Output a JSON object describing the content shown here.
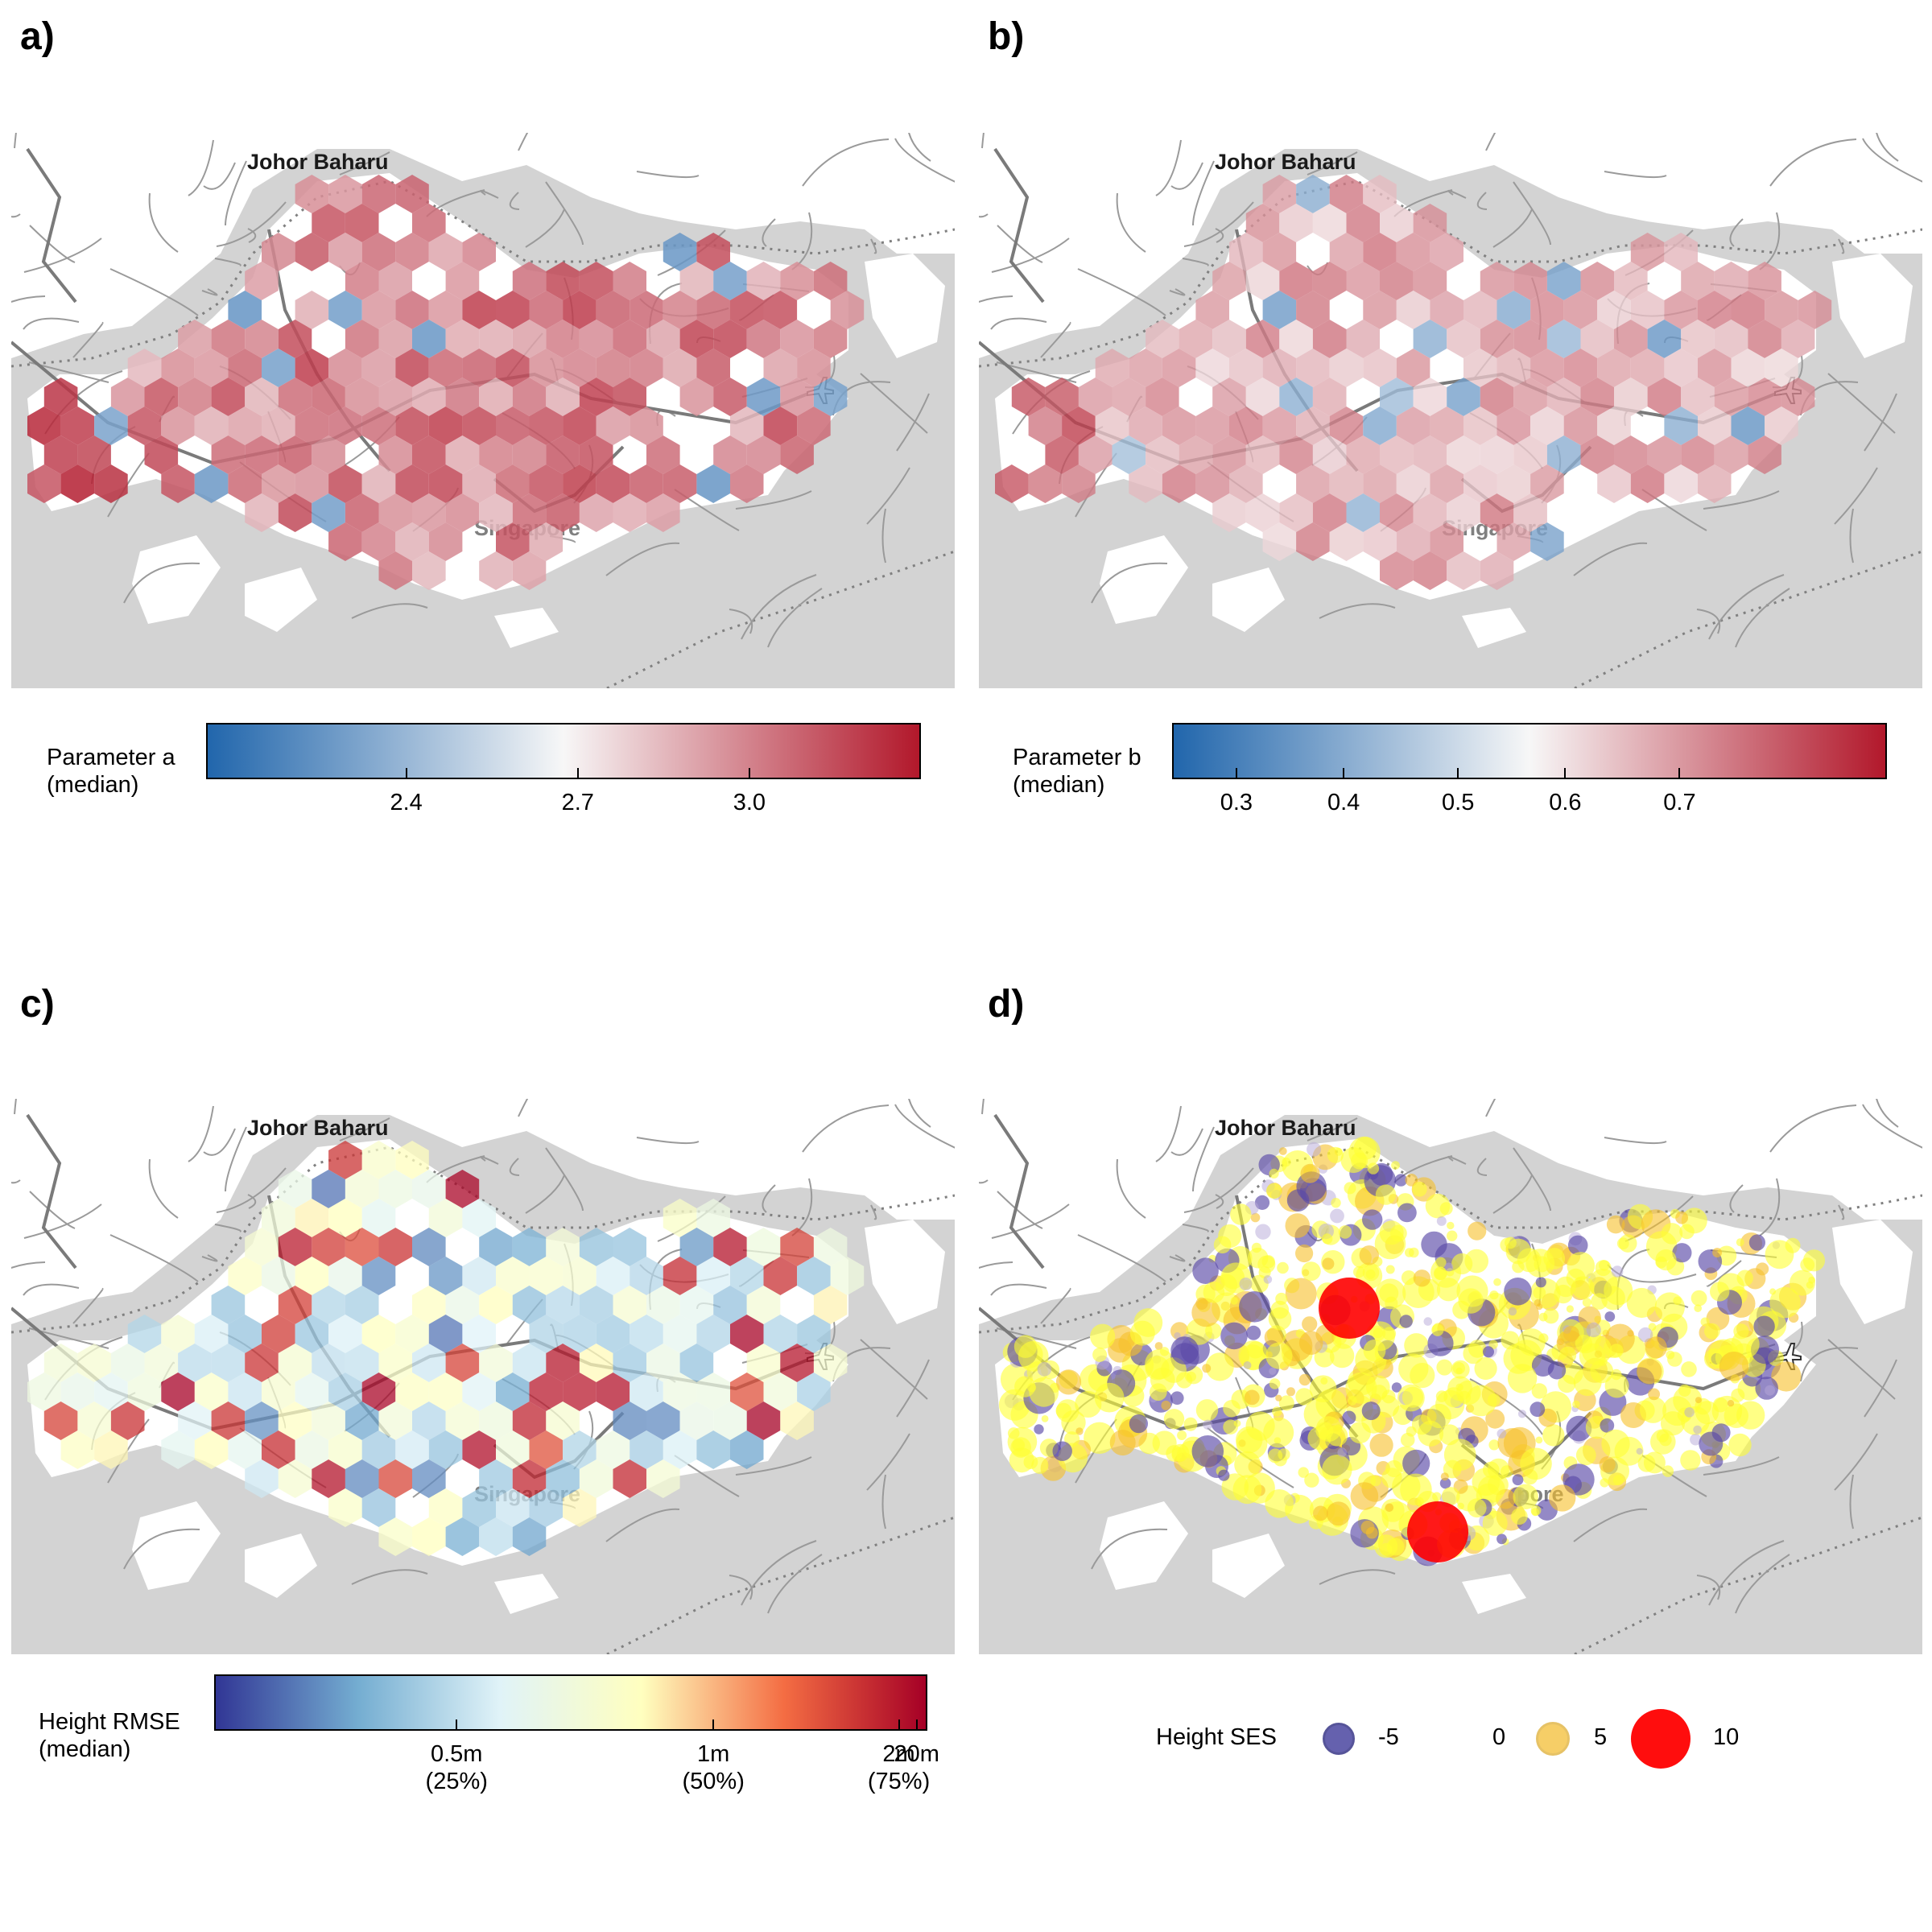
{
  "panels": {
    "a": {
      "letter": "a)"
    },
    "b": {
      "letter": "b)"
    },
    "c": {
      "letter": "c)"
    },
    "d": {
      "letter": "d)"
    }
  },
  "map_labels": {
    "north_city": "Johor Baharu",
    "south_city": "Singapore",
    "airport_icon": "airplane-icon"
  },
  "legends": {
    "a": {
      "title_line1": "Parameter a",
      "title_line2": "(median)",
      "ticks": [
        "2.4",
        "2.7",
        "3.0"
      ],
      "colors": [
        "#2166ac",
        "#f7f7f7",
        "#b2182b"
      ]
    },
    "b": {
      "title_line1": "Parameter b",
      "title_line2": "(median)",
      "ticks": [
        "0.3",
        "0.4",
        "0.5",
        "0.6",
        "0.7"
      ],
      "colors": [
        "#2166ac",
        "#f7f7f7",
        "#b2182b"
      ]
    },
    "c": {
      "title_line1": "Height RMSE",
      "title_line2": "(median)",
      "ticks": [
        {
          "value": "0.5m",
          "pct": "(25%)"
        },
        {
          "value": "1m",
          "pct": "(50%)"
        },
        {
          "value": "2m",
          "pct": "(75%)"
        },
        {
          "value": "20m",
          "pct": ""
        }
      ],
      "colors": [
        "#313695",
        "#74add1",
        "#e0f3f8",
        "#ffffbf",
        "#f46d43",
        "#a50026"
      ]
    },
    "d": {
      "title": "Height SES",
      "items": [
        {
          "label": "-5",
          "color": "#3f3a9a"
        },
        {
          "label": "0",
          "color": "#ffffff"
        },
        {
          "label": "5",
          "color": "#f5c242"
        },
        {
          "label": "10",
          "color": "#ff0000"
        }
      ]
    }
  },
  "chart_data": [
    {
      "type": "heatmap",
      "title": "a)",
      "colorbar_label": "Parameter a (median)",
      "colorbar_ticks": [
        2.4,
        2.7,
        3.0
      ],
      "colorbar_range": [
        2.1,
        3.3
      ],
      "scale": "diverging blue-white-red"
    },
    {
      "type": "heatmap",
      "title": "b)",
      "colorbar_label": "Parameter b (median)",
      "colorbar_ticks": [
        0.3,
        0.4,
        0.5,
        0.6,
        0.7
      ],
      "colorbar_range": [
        0.25,
        0.73
      ],
      "scale": "diverging blue-white-red"
    },
    {
      "type": "heatmap",
      "title": "c)",
      "colorbar_label": "Height RMSE (median)",
      "colorbar_ticks": [
        "0.5m (25%)",
        "1m (50%)",
        "2m (75%)",
        "20m"
      ],
      "scale": "log, blue-yellow-red"
    },
    {
      "type": "scatter",
      "title": "d)",
      "size_legend": "Height SES",
      "legend_values": [
        -5,
        0,
        5,
        10
      ]
    }
  ]
}
